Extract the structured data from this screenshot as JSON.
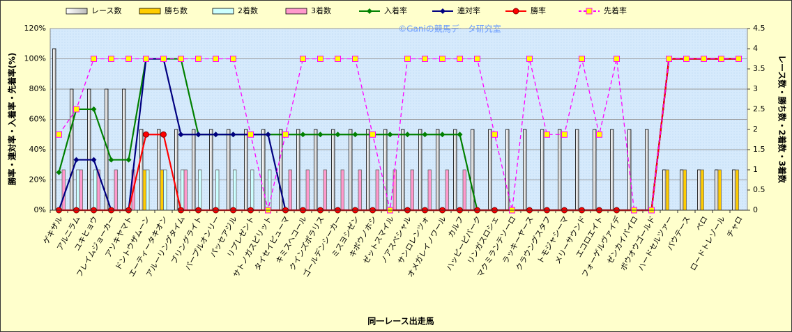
{
  "chart_data": {
    "type": "bar_line",
    "annotation": "©Ganiの競馬データ研究室",
    "x_label": "同一レース出走馬",
    "y_label": "勝率・連対率・入着率・先着率(%)",
    "y2_label": "レース数・勝ち数・2着数・3着数",
    "categories": [
      "ゲキザル",
      "アルニラム",
      "ユキヒョウ",
      "フレイムジョーカー",
      "アソキヤマト",
      "ドントウザムーン",
      "エーティータキオン",
      "アルーリングタイム",
      "ブリングライト",
      "パープルオンリー",
      "パッセアジル",
      "リプレゼント",
      "サトノガスピリット",
      "タイセイピューマ",
      "キミスヘコール",
      "クインズポラリス",
      "ゴールデンシーカー",
      "ミスヨシゼン",
      "キボウノホシ",
      "ゼットスマイル",
      "ノアスペシャル",
      "サンロレンツォ",
      "オメガレイノワール",
      "カルフ",
      "ハッピーピバーク",
      "リンガスロシェ",
      "マクミランテソーロ",
      "ラッキーヤース",
      "クラウングスタフ",
      "トモジャシーマ",
      "メリーサウンド",
      "エコロエイト",
      "フォーゲルヴァイデ",
      "ゼンカイパイロ",
      "ボウオウゴールド",
      "ハードセルツァー",
      "バウテース",
      "ペロ",
      "ロードトレゾール",
      "チャロ"
    ],
    "ylim": [
      0,
      120
    ],
    "yticks": [
      {
        "value": 0,
        "label": "0%"
      },
      {
        "value": 20,
        "label": "20%"
      },
      {
        "value": 40,
        "label": "40%"
      },
      {
        "value": 60,
        "label": "60%"
      },
      {
        "value": 80,
        "label": "80%"
      },
      {
        "value": 100,
        "label": "100%"
      },
      {
        "value": 120,
        "label": "120%"
      }
    ],
    "y2lim": [
      0,
      4.5
    ],
    "y2ticks": [
      0,
      0.5,
      1,
      1.5,
      2,
      2.5,
      3,
      3.5,
      4,
      4.5
    ],
    "grid": true,
    "series": [
      {
        "name": "レース数",
        "type": "bar",
        "axis": "y2",
        "color": "#ffffff",
        "values": [
          4,
          3,
          3,
          3,
          3,
          2,
          2,
          2,
          2,
          2,
          2,
          2,
          2,
          2,
          2,
          2,
          2,
          2,
          2,
          2,
          2,
          2,
          2,
          2,
          2,
          2,
          2,
          2,
          2,
          2,
          2,
          2,
          2,
          2,
          2,
          1,
          1,
          1,
          1,
          1
        ]
      },
      {
        "name": "勝ち数",
        "type": "bar",
        "axis": "y2",
        "color": "#ffcc00",
        "values": [
          0,
          0,
          0,
          0,
          0,
          1,
          1,
          0,
          0,
          0,
          0,
          0,
          0,
          0,
          0,
          0,
          0,
          0,
          0,
          0,
          0,
          0,
          0,
          0,
          0,
          0,
          0,
          0,
          0,
          0,
          0,
          0,
          0,
          0,
          0,
          1,
          1,
          1,
          1,
          1
        ]
      },
      {
        "name": "2着数",
        "type": "bar",
        "axis": "y2",
        "color": "#ccffff",
        "values": [
          0,
          1,
          1,
          0,
          0,
          1,
          1,
          1,
          1,
          1,
          1,
          1,
          1,
          0,
          0,
          0,
          0,
          0,
          0,
          0,
          0,
          0,
          0,
          0,
          0,
          0,
          0,
          0,
          0,
          0,
          0,
          0,
          0,
          0,
          0,
          0,
          0,
          0,
          0,
          0
        ]
      },
      {
        "name": "3着数",
        "type": "bar",
        "axis": "y2",
        "color": "#ff99cc",
        "values": [
          1,
          1,
          1,
          1,
          1,
          0,
          0,
          1,
          0,
          0,
          0,
          0,
          0,
          1,
          1,
          1,
          1,
          1,
          1,
          1,
          1,
          1,
          1,
          1,
          0,
          0,
          0,
          0,
          0,
          0,
          0,
          0,
          0,
          0,
          0,
          0,
          0,
          0,
          0,
          0
        ]
      },
      {
        "name": "入着率",
        "type": "line",
        "color": "#008000",
        "marker": "diamond",
        "values": [
          25,
          66.7,
          66.7,
          33.3,
          33.3,
          100,
          100,
          100,
          50,
          50,
          50,
          50,
          50,
          50,
          50,
          50,
          50,
          50,
          50,
          50,
          50,
          50,
          50,
          50,
          0,
          0,
          0,
          0,
          0,
          0,
          0,
          0,
          0,
          0,
          0,
          100,
          100,
          100,
          100,
          100
        ]
      },
      {
        "name": "連対率",
        "type": "line",
        "color": "#000080",
        "marker": "diamond",
        "values": [
          0,
          33.3,
          33.3,
          0,
          0,
          100,
          100,
          50,
          50,
          50,
          50,
          50,
          50,
          0,
          0,
          0,
          0,
          0,
          0,
          0,
          0,
          0,
          0,
          0,
          0,
          0,
          0,
          0,
          0,
          0,
          0,
          0,
          0,
          0,
          0,
          100,
          100,
          100,
          100,
          100
        ]
      },
      {
        "name": "勝率",
        "type": "line",
        "color": "#ff0000",
        "marker": "circle",
        "values": [
          0,
          0,
          0,
          0,
          0,
          50,
          50,
          0,
          0,
          0,
          0,
          0,
          0,
          0,
          0,
          0,
          0,
          0,
          0,
          0,
          0,
          0,
          0,
          0,
          0,
          0,
          0,
          0,
          0,
          0,
          0,
          0,
          0,
          0,
          0,
          100,
          100,
          100,
          100,
          100
        ]
      },
      {
        "name": "先着率",
        "type": "line",
        "color": "#ff00ff",
        "marker": "square",
        "dashed": true,
        "values": [
          50,
          66.7,
          100,
          100,
          100,
          100,
          100,
          100,
          100,
          100,
          100,
          50,
          0,
          50,
          100,
          100,
          100,
          100,
          50,
          0,
          100,
          100,
          100,
          100,
          100,
          50,
          0,
          100,
          50,
          50,
          100,
          50,
          100,
          0,
          0,
          100,
          100,
          100,
          100,
          100
        ]
      }
    ]
  }
}
